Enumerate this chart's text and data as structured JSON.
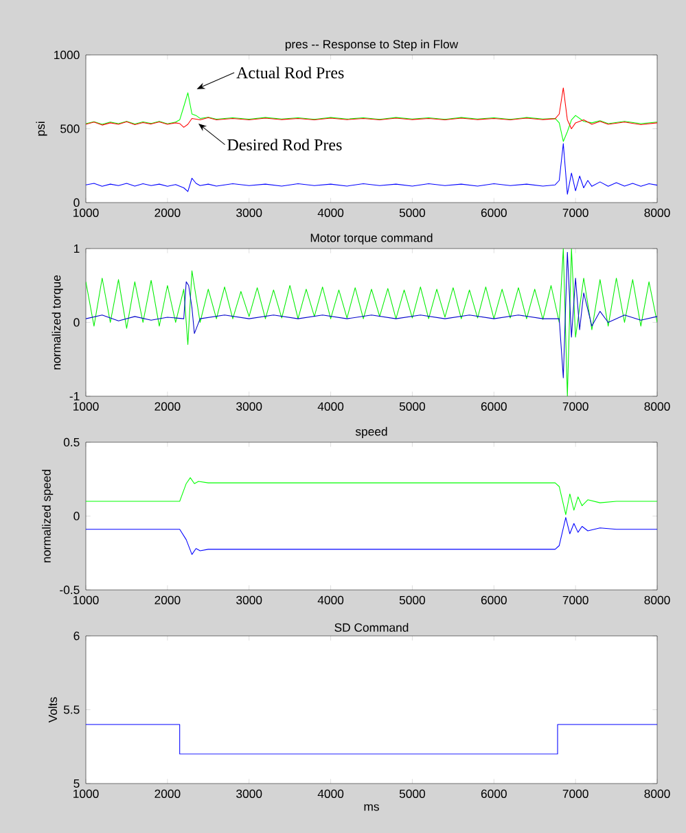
{
  "chart_data": [
    {
      "type": "line",
      "title": "pres -- Response to Step in Flow",
      "ylabel": "psi",
      "xlim": [
        1000,
        8000
      ],
      "ylim": [
        0,
        1000
      ],
      "xticks": [
        1000,
        2000,
        3000,
        4000,
        5000,
        6000,
        7000,
        8000
      ],
      "yticks": [
        0,
        500,
        1000
      ],
      "series": [
        {
          "color": "#0000ff",
          "x": [
            1000,
            1100,
            1200,
            1300,
            1400,
            1500,
            1600,
            1700,
            1800,
            1900,
            2000,
            2100,
            2200,
            2250,
            2300,
            2350,
            2400,
            2500,
            2600,
            2800,
            3000,
            3200,
            3400,
            3600,
            3800,
            4000,
            4200,
            4400,
            4600,
            4800,
            5000,
            5200,
            5400,
            5600,
            5800,
            6000,
            6200,
            6400,
            6600,
            6750,
            6800,
            6850,
            6900,
            6950,
            7000,
            7050,
            7100,
            7150,
            7200,
            7300,
            7400,
            7500,
            7600,
            7700,
            7800,
            7900,
            8000
          ],
          "values": [
            120,
            130,
            110,
            125,
            115,
            130,
            112,
            128,
            115,
            125,
            110,
            122,
            100,
            75,
            165,
            130,
            115,
            125,
            112,
            128,
            115,
            125,
            112,
            128,
            115,
            125,
            112,
            128,
            115,
            125,
            112,
            128,
            115,
            125,
            112,
            128,
            115,
            125,
            112,
            120,
            150,
            400,
            56,
            200,
            80,
            180,
            100,
            150,
            110,
            140,
            110,
            135,
            112,
            130,
            110,
            128,
            118
          ]
        },
        {
          "color": "#00ff00",
          "x": [
            1000,
            1100,
            1200,
            1300,
            1400,
            1500,
            1600,
            1700,
            1800,
            1900,
            2000,
            2100,
            2150,
            2200,
            2250,
            2300,
            2350,
            2400,
            2500,
            2600,
            2800,
            3000,
            3200,
            3400,
            3600,
            3800,
            4000,
            4200,
            4400,
            4600,
            4800,
            5000,
            5200,
            5400,
            5600,
            5800,
            6000,
            6200,
            6400,
            6600,
            6750,
            6800,
            6850,
            6900,
            6950,
            7000,
            7100,
            7200,
            7300,
            7400,
            7600,
            7800,
            8000
          ],
          "values": [
            535,
            548,
            530,
            545,
            535,
            550,
            532,
            546,
            536,
            550,
            534,
            545,
            560,
            650,
            744,
            600,
            590,
            570,
            578,
            565,
            574,
            565,
            576,
            566,
            574,
            564,
            576,
            566,
            574,
            564,
            576,
            566,
            574,
            564,
            576,
            566,
            574,
            564,
            576,
            566,
            570,
            540,
            414,
            480,
            560,
            590,
            550,
            540,
            555,
            535,
            550,
            535,
            545
          ]
        },
        {
          "color": "#ff0000",
          "x": [
            1000,
            1100,
            1200,
            1300,
            1400,
            1500,
            1600,
            1700,
            1800,
            1900,
            2000,
            2100,
            2150,
            2200,
            2250,
            2300,
            2350,
            2400,
            2500,
            2600,
            2800,
            3000,
            3200,
            3400,
            3600,
            3800,
            4000,
            4200,
            4400,
            4600,
            4800,
            5000,
            5200,
            5400,
            5600,
            5800,
            6000,
            6200,
            6400,
            6600,
            6750,
            6800,
            6850,
            6900,
            6950,
            7000,
            7100,
            7200,
            7300,
            7400,
            7600,
            7800,
            8000
          ],
          "values": [
            530,
            545,
            525,
            540,
            530,
            548,
            528,
            542,
            532,
            546,
            530,
            540,
            535,
            510,
            530,
            570,
            565,
            560,
            575,
            560,
            570,
            560,
            572,
            562,
            570,
            560,
            572,
            562,
            570,
            560,
            572,
            562,
            570,
            560,
            572,
            562,
            570,
            560,
            572,
            562,
            568,
            600,
            777,
            560,
            500,
            540,
            560,
            530,
            550,
            530,
            545,
            528,
            540
          ]
        }
      ],
      "annotations": [
        {
          "text": "Actual Rod Pres",
          "x": 2280,
          "y": 744
        },
        {
          "text": "Desired Rod Pres",
          "x": 2300,
          "y": 560
        }
      ]
    },
    {
      "type": "line",
      "title": "Motor torque command",
      "ylabel": "normalized torque",
      "xlim": [
        1000,
        8000
      ],
      "ylim": [
        -1,
        1
      ],
      "xticks": [
        1000,
        2000,
        3000,
        4000,
        5000,
        6000,
        7000,
        8000
      ],
      "yticks": [
        -1,
        0,
        1
      ],
      "series": [
        {
          "color": "#00ee00",
          "x": [
            1000,
            1100,
            1200,
            1300,
            1400,
            1500,
            1600,
            1700,
            1800,
            1900,
            2000,
            2100,
            2200,
            2250,
            2300,
            2400,
            2500,
            2600,
            2700,
            2800,
            2900,
            3000,
            3100,
            3200,
            3300,
            3400,
            3500,
            3600,
            3700,
            3800,
            3900,
            4000,
            4100,
            4200,
            4300,
            4400,
            4500,
            4600,
            4700,
            4800,
            4900,
            5000,
            5100,
            5200,
            5300,
            5400,
            5500,
            5600,
            5700,
            5800,
            5900,
            6000,
            6100,
            6200,
            6300,
            6400,
            6500,
            6600,
            6700,
            6800,
            6850,
            6900,
            6950,
            7000,
            7100,
            7200,
            7300,
            7400,
            7500,
            7600,
            7700,
            7800,
            7900,
            8000
          ],
          "values": [
            0.55,
            -0.05,
            0.6,
            0.0,
            0.58,
            -0.08,
            0.55,
            0.0,
            0.57,
            -0.05,
            0.5,
            0.0,
            0.45,
            -0.3,
            0.7,
            0.0,
            0.45,
            0.05,
            0.48,
            0.05,
            0.42,
            0.08,
            0.47,
            0.05,
            0.44,
            0.06,
            0.5,
            0.05,
            0.45,
            0.08,
            0.48,
            0.05,
            0.44,
            0.06,
            0.47,
            0.05,
            0.45,
            0.08,
            0.46,
            0.05,
            0.44,
            0.06,
            0.48,
            0.05,
            0.45,
            0.07,
            0.47,
            0.05,
            0.44,
            0.06,
            0.48,
            0.05,
            0.45,
            0.06,
            0.47,
            0.05,
            0.45,
            0.04,
            0.5,
            0.0,
            1.0,
            -1.0,
            1.0,
            -0.2,
            0.6,
            -0.1,
            0.58,
            -0.05,
            0.6,
            0.0,
            0.58,
            -0.05,
            0.55,
            0.0
          ]
        },
        {
          "color": "#0000cc",
          "x": [
            1000,
            1200,
            1400,
            1600,
            1800,
            2000,
            2200,
            2230,
            2260,
            2300,
            2330,
            2400,
            2700,
            3000,
            3300,
            3600,
            3900,
            4200,
            4500,
            4800,
            5100,
            5400,
            5700,
            6000,
            6300,
            6600,
            6800,
            6850,
            6900,
            6950,
            7000,
            7050,
            7100,
            7200,
            7300,
            7400,
            7600,
            7800,
            8000
          ],
          "values": [
            0.05,
            0.1,
            0.02,
            0.08,
            0.03,
            0.07,
            0.05,
            0.55,
            0.5,
            0.2,
            -0.15,
            0.05,
            0.1,
            0.05,
            0.1,
            0.05,
            0.1,
            0.05,
            0.1,
            0.05,
            0.1,
            0.05,
            0.1,
            0.05,
            0.1,
            0.05,
            0.05,
            -0.75,
            0.95,
            -0.2,
            0.6,
            -0.1,
            0.4,
            -0.05,
            0.15,
            0.0,
            0.1,
            0.03,
            0.08
          ]
        }
      ]
    },
    {
      "type": "line",
      "title": "speed",
      "ylabel": "normalized speed",
      "xlim": [
        1000,
        8000
      ],
      "ylim": [
        -0.5,
        0.5
      ],
      "xticks": [
        1000,
        2000,
        3000,
        4000,
        5000,
        6000,
        7000,
        8000
      ],
      "yticks": [
        -0.5,
        0,
        0.5
      ],
      "series": [
        {
          "color": "#00ff00",
          "x": [
            1000,
            1500,
            2000,
            2150,
            2230,
            2280,
            2330,
            2380,
            2500,
            3000,
            4000,
            5000,
            6000,
            6750,
            6800,
            6880,
            6930,
            6980,
            7030,
            7080,
            7150,
            7300,
            7500,
            8000
          ],
          "values": [
            0.1,
            0.1,
            0.1,
            0.1,
            0.22,
            0.26,
            0.22,
            0.235,
            0.225,
            0.225,
            0.225,
            0.225,
            0.225,
            0.225,
            0.2,
            0.01,
            0.15,
            0.04,
            0.13,
            0.07,
            0.11,
            0.09,
            0.1,
            0.1
          ]
        },
        {
          "color": "#0000ff",
          "x": [
            1000,
            1500,
            2000,
            2150,
            2230,
            2300,
            2350,
            2400,
            2500,
            3000,
            4000,
            5000,
            6000,
            6750,
            6800,
            6880,
            6930,
            6980,
            7030,
            7080,
            7150,
            7300,
            7500,
            8000
          ],
          "values": [
            -0.09,
            -0.09,
            -0.09,
            -0.09,
            -0.16,
            -0.26,
            -0.22,
            -0.235,
            -0.225,
            -0.225,
            -0.225,
            -0.225,
            -0.225,
            -0.225,
            -0.2,
            -0.01,
            -0.12,
            -0.05,
            -0.11,
            -0.07,
            -0.1,
            -0.08,
            -0.09,
            -0.09
          ]
        }
      ]
    },
    {
      "type": "step",
      "title": "SD Command",
      "xlabel": "ms",
      "ylabel": "Volts",
      "xlim": [
        1000,
        8000
      ],
      "ylim": [
        5,
        6
      ],
      "xticks": [
        1000,
        2000,
        3000,
        4000,
        5000,
        6000,
        7000,
        8000
      ],
      "yticks": [
        5,
        5.5,
        6
      ],
      "series": [
        {
          "color": "#0000ff",
          "x": [
            1000,
            2150,
            6780,
            8000
          ],
          "values": [
            5.4,
            5.2,
            5.4,
            5.4
          ]
        }
      ]
    }
  ]
}
